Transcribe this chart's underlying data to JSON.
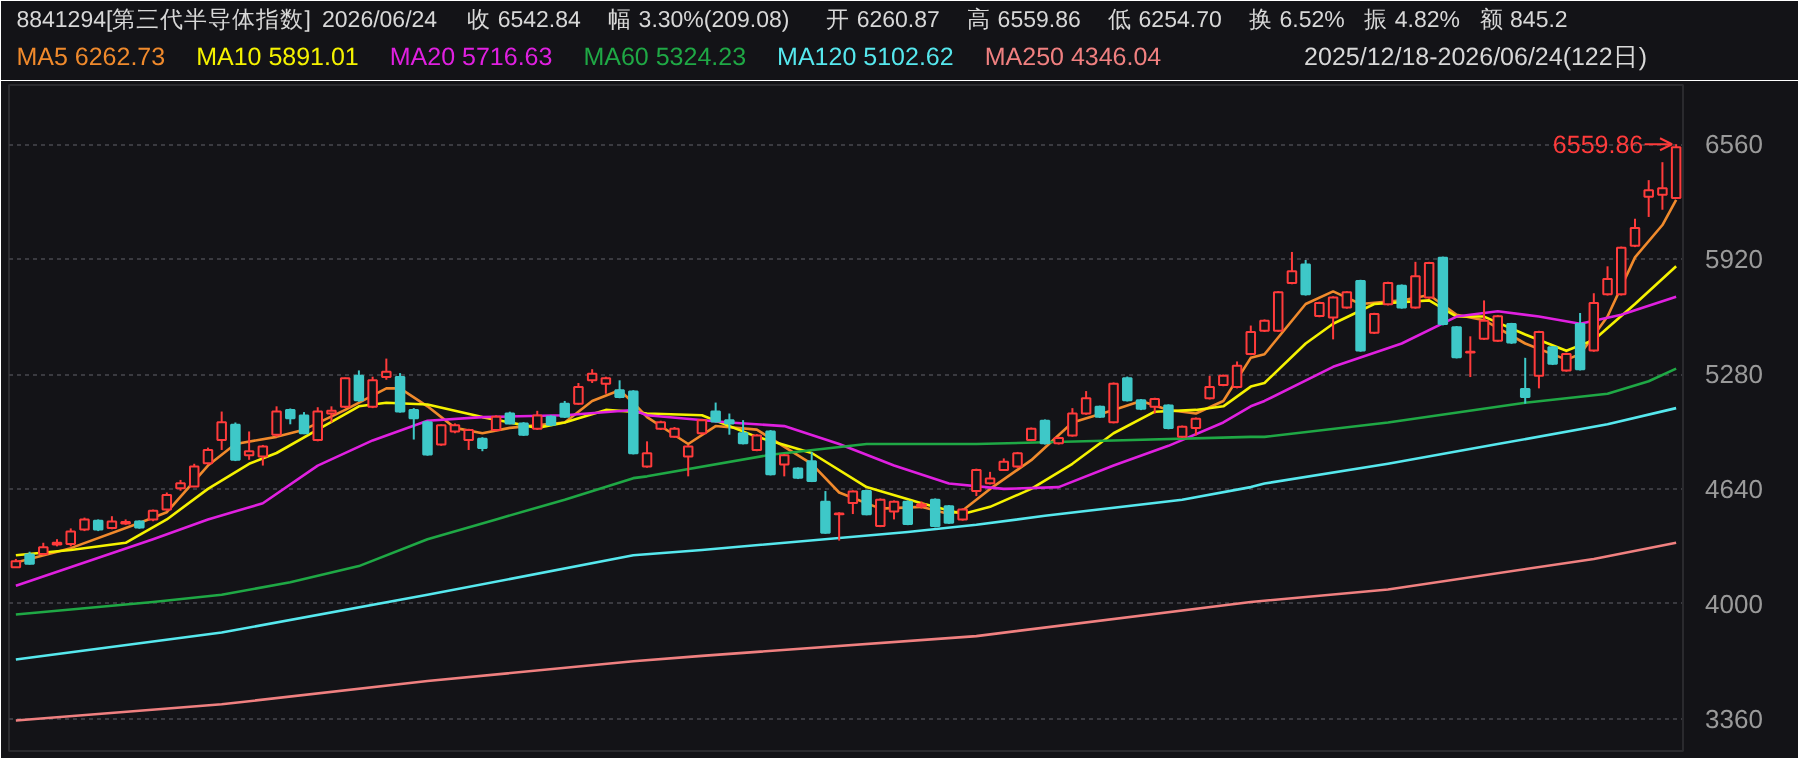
{
  "chart_data": {
    "type": "candlestick",
    "title": "8841294[第三代半导体指数]",
    "categories": [
      null,
      null,
      null,
      null,
      null,
      null,
      null,
      null,
      null,
      null,
      null,
      null,
      null,
      null,
      null,
      null,
      null,
      null,
      null,
      null,
      null,
      null,
      null,
      null,
      null,
      null,
      null,
      null,
      null,
      null,
      null,
      null,
      null,
      null,
      null,
      null,
      null,
      null,
      null,
      null,
      null,
      null,
      null,
      null,
      null,
      null,
      null,
      null,
      null,
      null,
      null,
      null,
      null,
      null,
      null,
      null,
      null,
      null,
      null,
      null,
      null,
      null,
      null,
      null,
      null,
      null,
      null,
      null,
      null,
      null,
      null,
      null,
      null,
      null,
      null,
      null,
      null,
      null,
      null,
      null,
      null,
      null,
      null,
      null,
      null,
      null,
      null,
      null,
      null,
      null,
      null,
      null,
      null,
      null,
      null,
      null,
      null,
      null,
      null,
      null,
      null,
      null,
      null,
      null,
      null,
      null,
      null,
      null,
      null,
      null,
      null,
      null,
      null,
      null,
      null,
      null,
      null,
      null,
      null,
      null,
      null,
      null
    ],
    "ohlc": [
      [
        4204,
        4250,
        4200,
        4237
      ],
      [
        4274,
        4290,
        4218,
        4223
      ],
      [
        4278,
        4340,
        4270,
        4315
      ],
      [
        4330,
        4360,
        4320,
        4340
      ],
      [
        4333,
        4420,
        4320,
        4403
      ],
      [
        4414,
        4480,
        4405,
        4470
      ],
      [
        4462,
        4470,
        4405,
        4414
      ],
      [
        4422,
        4488,
        4415,
        4459
      ],
      [
        4447,
        4470,
        4440,
        4455
      ],
      [
        4459,
        4465,
        4418,
        4425
      ],
      [
        4470,
        4525,
        4460,
        4518
      ],
      [
        4525,
        4620,
        4518,
        4606
      ],
      [
        4643,
        4690,
        4630,
        4672
      ],
      [
        4654,
        4780,
        4650,
        4765
      ],
      [
        4783,
        4870,
        4775,
        4857
      ],
      [
        4913,
        5071,
        4857,
        5012
      ],
      [
        4998,
        5010,
        4795,
        4802
      ],
      [
        4828,
        4960,
        4802,
        4850
      ],
      [
        4820,
        4885,
        4770,
        4876
      ],
      [
        4942,
        5100,
        4930,
        5071
      ],
      [
        5079,
        5088,
        5000,
        5034
      ],
      [
        5049,
        5068,
        4945,
        4950
      ],
      [
        4913,
        5095,
        4905,
        5071
      ],
      [
        5060,
        5100,
        5010,
        5075
      ],
      [
        5097,
        5260,
        5090,
        5256
      ],
      [
        5270,
        5300,
        5125,
        5134
      ],
      [
        5097,
        5265,
        5090,
        5245
      ],
      [
        5263,
        5366,
        5248,
        5292
      ],
      [
        5263,
        5285,
        5065,
        5071
      ],
      [
        5079,
        5090,
        4915,
        5034
      ],
      [
        5012,
        5020,
        4825,
        4831
      ],
      [
        4887,
        5000,
        4880,
        4994
      ],
      [
        4960,
        5005,
        4950,
        4994
      ],
      [
        4913,
        4975,
        4857,
        4968
      ],
      [
        4920,
        4928,
        4850,
        4868
      ],
      [
        4968,
        5050,
        4960,
        5042
      ],
      [
        5060,
        5070,
        5000,
        5005
      ],
      [
        5005,
        5012,
        4935,
        4942
      ],
      [
        4975,
        5075,
        4968,
        5049
      ],
      [
        5042,
        5050,
        4990,
        4997
      ],
      [
        5115,
        5130,
        5035,
        5042
      ],
      [
        5115,
        5230,
        5108,
        5208
      ],
      [
        5245,
        5307,
        5230,
        5281
      ],
      [
        5226,
        5265,
        5170,
        5256
      ],
      [
        5189,
        5245,
        5145,
        5152
      ],
      [
        5182,
        5190,
        4832,
        4839
      ],
      [
        4765,
        4905,
        4758,
        4839
      ],
      [
        4975,
        5020,
        4968,
        5012
      ],
      [
        4931,
        4985,
        4925,
        4975
      ],
      [
        4820,
        4885,
        4710,
        4876
      ],
      [
        4950,
        5030,
        4943,
        5023
      ],
      [
        5071,
        5121,
        5010,
        5016
      ],
      [
        5023,
        5060,
        4942,
        5005
      ],
      [
        4950,
        5023,
        4888,
        4894
      ],
      [
        4857,
        4945,
        4850,
        4938
      ],
      [
        4960,
        4968,
        4715,
        4721
      ],
      [
        4776,
        4835,
        4710,
        4828
      ],
      [
        4754,
        4760,
        4695,
        4702
      ],
      [
        4794,
        4845,
        4678,
        4684
      ],
      [
        4569,
        4628,
        4390,
        4396
      ],
      [
        4499,
        4510,
        4352,
        4503
      ],
      [
        4562,
        4632,
        4500,
        4625
      ],
      [
        4628,
        4635,
        4493,
        4499
      ],
      [
        4433,
        4587,
        4427,
        4580
      ],
      [
        4514,
        4576,
        4470,
        4569
      ],
      [
        4569,
        4576,
        4438,
        4444
      ],
      [
        4543,
        4570,
        4530,
        4554
      ],
      [
        4580,
        4587,
        4426,
        4433
      ],
      [
        4543,
        4550,
        4445,
        4451
      ],
      [
        4470,
        4532,
        4463,
        4525
      ],
      [
        4628,
        4753,
        4600,
        4746
      ],
      [
        4672,
        4735,
        4665,
        4698
      ],
      [
        4746,
        4810,
        4740,
        4791
      ],
      [
        4765,
        4846,
        4758,
        4839
      ],
      [
        4913,
        4982,
        4906,
        4975
      ],
      [
        5020,
        5027,
        4887,
        4894
      ],
      [
        4894,
        4931,
        4887,
        4924
      ],
      [
        4938,
        5090,
        4931,
        5060
      ],
      [
        5060,
        5185,
        5053,
        5145
      ],
      [
        5097,
        5104,
        5035,
        5042
      ],
      [
        5012,
        5233,
        5005,
        5226
      ],
      [
        5256,
        5266,
        5127,
        5134
      ],
      [
        5134,
        5141,
        5079,
        5086
      ],
      [
        5097,
        5148,
        5060,
        5141
      ],
      [
        5104,
        5111,
        4972,
        4979
      ],
      [
        4931,
        4993,
        4924,
        4986
      ],
      [
        4979,
        5038,
        4938,
        5031
      ],
      [
        5145,
        5270,
        5138,
        5208
      ],
      [
        5219,
        5277,
        5212,
        5270
      ],
      [
        5208,
        5350,
        5200,
        5326
      ],
      [
        5392,
        5550,
        5385,
        5514
      ],
      [
        5521,
        5584,
        5514,
        5577
      ],
      [
        5521,
        5742,
        5514,
        5735
      ],
      [
        5787,
        5960,
        5780,
        5853
      ],
      [
        5890,
        5915,
        5717,
        5724
      ],
      [
        5603,
        5683,
        5596,
        5676
      ],
      [
        5595,
        5713,
        5473,
        5706
      ],
      [
        5651,
        5742,
        5644,
        5735
      ],
      [
        5798,
        5805,
        5404,
        5411
      ],
      [
        5510,
        5621,
        5503,
        5614
      ],
      [
        5669,
        5794,
        5662,
        5787
      ],
      [
        5772,
        5779,
        5644,
        5651
      ],
      [
        5651,
        5905,
        5644,
        5824
      ],
      [
        5706,
        5905,
        5699,
        5898
      ],
      [
        5927,
        5934,
        5551,
        5558
      ],
      [
        5540,
        5547,
        5367,
        5374
      ],
      [
        5400,
        5490,
        5263,
        5404
      ],
      [
        5477,
        5690,
        5470,
        5577
      ],
      [
        5466,
        5609,
        5459,
        5602
      ],
      [
        5558,
        5565,
        5448,
        5455
      ],
      [
        5196,
        5370,
        5115,
        5152
      ],
      [
        5270,
        5521,
        5200,
        5514
      ],
      [
        5429,
        5436,
        5330,
        5337
      ],
      [
        5300,
        5399,
        5293,
        5392
      ],
      [
        5558,
        5620,
        5300,
        5307
      ],
      [
        5411,
        5730,
        5404,
        5676
      ],
      [
        5724,
        5880,
        5717,
        5809
      ],
      [
        5724,
        5990,
        5717,
        5983
      ],
      [
        5994,
        6145,
        5987,
        6093
      ],
      [
        6267,
        6360,
        6155,
        6304
      ],
      [
        6278,
        6460,
        6195,
        6315
      ],
      [
        6260.87,
        6559.86,
        6254.7,
        6542.84
      ]
    ],
    "series": [
      {
        "name": "MA5 6262.73",
        "type": "line",
        "color": "#f08a2c",
        "values": [
          4230,
          null,
          null,
          null,
          4310,
          null,
          null,
          null,
          null,
          4450,
          null,
          4510,
          null,
          null,
          4770,
          null,
          4890,
          null,
          null,
          4930,
          null,
          4970,
          null,
          null,
          5080,
          null,
          null,
          5200,
          5200,
          null,
          5100,
          null,
          4980,
          null,
          4950,
          null,
          4980,
          null,
          null,
          null,
          5010,
          null,
          5130,
          null,
          5190,
          5120,
          5040,
          null,
          null,
          4890,
          null,
          4990,
          null,
          null,
          4970,
          null,
          null,
          null,
          4780,
          null,
          4620,
          null,
          null,
          4530,
          null,
          null,
          4540,
          null,
          4500,
          4520,
          null,
          4640,
          null,
          null,
          4800,
          null,
          null,
          5010,
          null,
          null,
          5080,
          null,
          5130,
          null,
          5080,
          null,
          5060,
          null,
          5130,
          null,
          5370,
          5390,
          null,
          null,
          5670,
          null,
          5740,
          null,
          5670,
          null,
          null,
          5690,
          null,
          5720,
          null,
          5610,
          null,
          5580,
          null,
          null,
          5450,
          null,
          null,
          5360,
          5390,
          null,
          5600,
          null,
          5930,
          null,
          6110,
          6250
        ]
      },
      {
        "name": "MA10 5891.01",
        "type": "line",
        "color": "#f5f200",
        "values": [
          4270,
          null,
          null,
          null,
          4300,
          null,
          null,
          null,
          4340,
          null,
          null,
          4470,
          null,
          null,
          4640,
          null,
          null,
          4780,
          null,
          4840,
          null,
          null,
          4970,
          null,
          null,
          5100,
          null,
          5120,
          null,
          null,
          5110,
          null,
          null,
          null,
          5040,
          null,
          null,
          null,
          4980,
          null,
          5010,
          null,
          null,
          5080,
          null,
          5070,
          5060,
          null,
          null,
          null,
          5050,
          null,
          null,
          null,
          4930,
          null,
          null,
          null,
          4840,
          null,
          null,
          null,
          4650,
          null,
          null,
          null,
          4560,
          null,
          null,
          4500,
          null,
          4540,
          null,
          null,
          4640,
          null,
          null,
          4780,
          null,
          null,
          4950,
          null,
          null,
          5070,
          null,
          null,
          5080,
          null,
          5100,
          null,
          5210,
          5230,
          null,
          null,
          5450,
          null,
          5560,
          null,
          null,
          5670,
          null,
          null,
          null,
          5690,
          null,
          5600,
          null,
          5600,
          null,
          null,
          5500,
          null,
          null,
          5410,
          null,
          5470,
          null,
          null,
          5670,
          null,
          null,
          5880
        ]
      },
      {
        "name": "MA20 5716.63",
        "type": "line",
        "color": "#e020e0",
        "values": [
          4100,
          null,
          null,
          null,
          null,
          4230,
          null,
          null,
          null,
          null,
          4360,
          null,
          null,
          null,
          4470,
          null,
          null,
          null,
          4560,
          null,
          null,
          null,
          4770,
          null,
          null,
          null,
          4910,
          null,
          null,
          null,
          5020,
          null,
          null,
          null,
          5040,
          null,
          null,
          null,
          null,
          null,
          5050,
          null,
          null,
          null,
          null,
          5080,
          5050,
          null,
          null,
          null,
          null,
          null,
          5010,
          null,
          null,
          null,
          4990,
          null,
          null,
          null,
          4890,
          null,
          null,
          null,
          4770,
          null,
          null,
          null,
          4670,
          null,
          null,
          null,
          4640,
          null,
          null,
          null,
          4650,
          null,
          null,
          null,
          4770,
          null,
          null,
          null,
          4880,
          null,
          null,
          null,
          5010,
          null,
          5100,
          5130,
          null,
          null,
          null,
          null,
          5320,
          null,
          null,
          null,
          null,
          5450,
          null,
          null,
          null,
          5600,
          null,
          null,
          5630,
          null,
          null,
          5600,
          null,
          null,
          5560,
          null,
          null,
          5610,
          null,
          null,
          null,
          5710
        ]
      },
      {
        "name": "MA60 5324.23",
        "type": "line",
        "color": "#1fa845",
        "values": [
          3940,
          null,
          null,
          null,
          null,
          null,
          null,
          null,
          null,
          null,
          4010,
          null,
          null,
          null,
          null,
          4050,
          null,
          null,
          null,
          null,
          4120,
          null,
          null,
          null,
          null,
          4210,
          null,
          null,
          null,
          null,
          4360,
          null,
          null,
          null,
          null,
          4470,
          null,
          null,
          null,
          null,
          4580,
          null,
          null,
          null,
          null,
          4700,
          4710,
          null,
          null,
          null,
          null,
          null,
          null,
          null,
          null,
          4830,
          null,
          null,
          null,
          null,
          null,
          null,
          4890,
          null,
          null,
          null,
          null,
          null,
          null,
          null,
          4890,
          null,
          null,
          null,
          null,
          null,
          null,
          null,
          null,
          null,
          4910,
          null,
          null,
          null,
          null,
          null,
          null,
          null,
          null,
          null,
          4930,
          4930,
          null,
          null,
          null,
          null,
          null,
          null,
          null,
          null,
          5010,
          null,
          null,
          null,
          null,
          null,
          null,
          null,
          null,
          null,
          5120,
          null,
          null,
          null,
          null,
          null,
          5170,
          null,
          null,
          5240,
          null,
          5310
        ]
      },
      {
        "name": "MA120 5102.62",
        "type": "line",
        "color": "#56e8ee",
        "values": [
          3690,
          null,
          null,
          null,
          null,
          null,
          null,
          null,
          null,
          null,
          null,
          null,
          null,
          null,
          null,
          3840,
          null,
          null,
          null,
          null,
          null,
          null,
          null,
          null,
          null,
          null,
          null,
          null,
          null,
          null,
          4050,
          null,
          null,
          null,
          null,
          null,
          null,
          null,
          null,
          null,
          null,
          null,
          null,
          null,
          null,
          4270,
          null,
          null,
          null,
          null,
          4300,
          null,
          null,
          null,
          null,
          null,
          null,
          null,
          null,
          null,
          null,
          null,
          null,
          null,
          null,
          4400,
          null,
          null,
          null,
          null,
          4440,
          null,
          null,
          null,
          null,
          4490,
          null,
          null,
          null,
          null,
          null,
          null,
          null,
          null,
          null,
          4580,
          null,
          null,
          null,
          null,
          4650,
          4670,
          null,
          null,
          null,
          null,
          null,
          null,
          null,
          null,
          4780,
          null,
          null,
          null,
          null,
          null,
          null,
          null,
          4890,
          null,
          null,
          null,
          null,
          null,
          null,
          null,
          5000,
          null,
          null,
          null,
          null,
          5090
        ]
      },
      {
        "name": "MA250 4346.04",
        "type": "line",
        "color": "#f08080",
        "values": [
          3350,
          null,
          null,
          null,
          null,
          null,
          null,
          null,
          null,
          null,
          null,
          null,
          null,
          null,
          null,
          3440,
          null,
          null,
          null,
          null,
          null,
          null,
          null,
          null,
          null,
          null,
          null,
          null,
          null,
          null,
          3570,
          null,
          null,
          null,
          null,
          null,
          null,
          null,
          null,
          null,
          null,
          null,
          null,
          null,
          null,
          3680,
          null,
          null,
          null,
          null,
          3710,
          null,
          null,
          null,
          null,
          null,
          null,
          null,
          null,
          null,
          null,
          null,
          null,
          null,
          null,
          null,
          null,
          null,
          null,
          null,
          3820,
          null,
          null,
          null,
          null,
          null,
          null,
          null,
          null,
          null,
          null,
          null,
          null,
          null,
          null,
          null,
          null,
          null,
          null,
          null,
          4010,
          null,
          null,
          null,
          null,
          null,
          null,
          null,
          null,
          null,
          4080,
          null,
          null,
          null,
          null,
          null,
          null,
          null,
          null,
          null,
          null,
          null,
          null,
          null,
          null,
          4250,
          null,
          null,
          null,
          null,
          null,
          4340
        ]
      }
    ],
    "ylim": [
      3180,
      6890
    ],
    "yticks": [
      3360,
      4000,
      4640,
      5280,
      5920,
      6560
    ],
    "grid": "y",
    "legend": "top left",
    "annotations": [
      "2026/06/24",
      "收 6542.84",
      "幅 3.30%(209.08)",
      "开 6260.87",
      "高 6559.86",
      "低 6254.70",
      "换 6.52%",
      "振 4.82%",
      "额 845.2",
      "2025/12/18-2026/06/24(122日)",
      "6559.86"
    ]
  }
}
